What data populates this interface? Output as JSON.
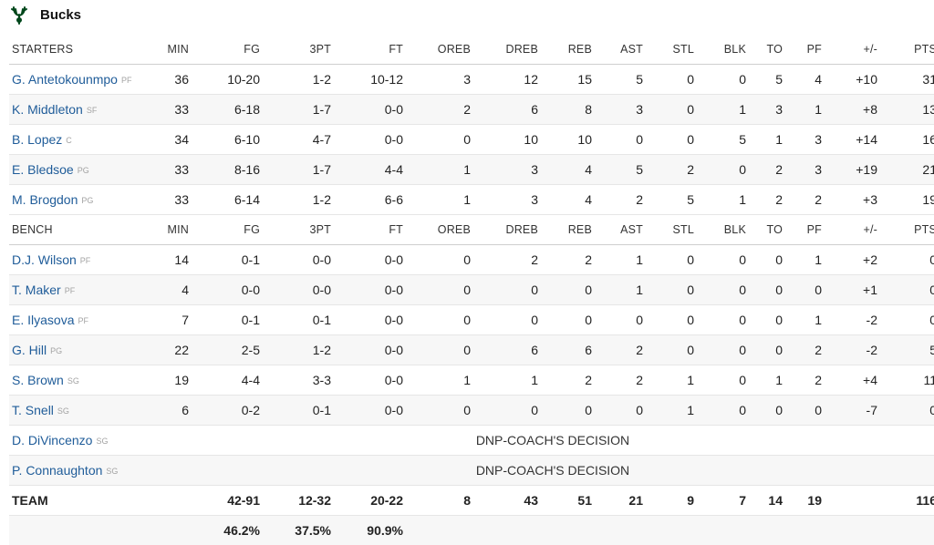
{
  "team": {
    "name": "Bucks",
    "logo_icon": "deer-antlers-icon",
    "logo_color": "#00471b"
  },
  "columns": [
    "MIN",
    "FG",
    "3PT",
    "FT",
    "OREB",
    "DREB",
    "REB",
    "AST",
    "STL",
    "BLK",
    "TO",
    "PF",
    "+/-",
    "PTS"
  ],
  "starters_label": "STARTERS",
  "bench_label": "BENCH",
  "starters": [
    {
      "name": "G. Antetokounmpo",
      "pos": "PF",
      "stats": [
        "36",
        "10-20",
        "1-2",
        "10-12",
        "3",
        "12",
        "15",
        "5",
        "0",
        "0",
        "5",
        "4",
        "+10",
        "31"
      ]
    },
    {
      "name": "K. Middleton",
      "pos": "SF",
      "stats": [
        "33",
        "6-18",
        "1-7",
        "0-0",
        "2",
        "6",
        "8",
        "3",
        "0",
        "1",
        "3",
        "1",
        "+8",
        "13"
      ]
    },
    {
      "name": "B. Lopez",
      "pos": "C",
      "stats": [
        "34",
        "6-10",
        "4-7",
        "0-0",
        "0",
        "10",
        "10",
        "0",
        "0",
        "5",
        "1",
        "3",
        "+14",
        "16"
      ]
    },
    {
      "name": "E. Bledsoe",
      "pos": "PG",
      "stats": [
        "33",
        "8-16",
        "1-7",
        "4-4",
        "1",
        "3",
        "4",
        "5",
        "2",
        "0",
        "2",
        "3",
        "+19",
        "21"
      ]
    },
    {
      "name": "M. Brogdon",
      "pos": "PG",
      "stats": [
        "33",
        "6-14",
        "1-2",
        "6-6",
        "1",
        "3",
        "4",
        "2",
        "5",
        "1",
        "2",
        "2",
        "+3",
        "19"
      ]
    }
  ],
  "bench": [
    {
      "name": "D.J. Wilson",
      "pos": "PF",
      "stats": [
        "14",
        "0-1",
        "0-0",
        "0-0",
        "0",
        "2",
        "2",
        "1",
        "0",
        "0",
        "0",
        "1",
        "+2",
        "0"
      ]
    },
    {
      "name": "T. Maker",
      "pos": "PF",
      "stats": [
        "4",
        "0-0",
        "0-0",
        "0-0",
        "0",
        "0",
        "0",
        "1",
        "0",
        "0",
        "0",
        "0",
        "+1",
        "0"
      ]
    },
    {
      "name": "E. Ilyasova",
      "pos": "PF",
      "stats": [
        "7",
        "0-1",
        "0-1",
        "0-0",
        "0",
        "0",
        "0",
        "0",
        "0",
        "0",
        "0",
        "1",
        "-2",
        "0"
      ]
    },
    {
      "name": "G. Hill",
      "pos": "PG",
      "stats": [
        "22",
        "2-5",
        "1-2",
        "0-0",
        "0",
        "6",
        "6",
        "2",
        "0",
        "0",
        "0",
        "2",
        "-2",
        "5"
      ]
    },
    {
      "name": "S. Brown",
      "pos": "SG",
      "stats": [
        "19",
        "4-4",
        "3-3",
        "0-0",
        "1",
        "1",
        "2",
        "2",
        "1",
        "0",
        "1",
        "2",
        "+4",
        "11"
      ]
    },
    {
      "name": "T. Snell",
      "pos": "SG",
      "stats": [
        "6",
        "0-2",
        "0-1",
        "0-0",
        "0",
        "0",
        "0",
        "0",
        "1",
        "0",
        "0",
        "0",
        "-7",
        "0"
      ]
    },
    {
      "name": "D. DiVincenzo",
      "pos": "SG",
      "dnp": "DNP-COACH'S DECISION"
    },
    {
      "name": "P. Connaughton",
      "pos": "SG",
      "dnp": "DNP-COACH'S DECISION"
    }
  ],
  "totals": {
    "label": "TEAM",
    "stats": [
      "",
      "42-91",
      "12-32",
      "20-22",
      "8",
      "43",
      "51",
      "21",
      "9",
      "7",
      "14",
      "19",
      "",
      "116"
    ],
    "percentages": [
      "",
      "46.2%",
      "37.5%",
      "90.9%",
      "",
      "",
      "",
      "",
      "",
      "",
      "",
      "",
      "",
      ""
    ]
  }
}
